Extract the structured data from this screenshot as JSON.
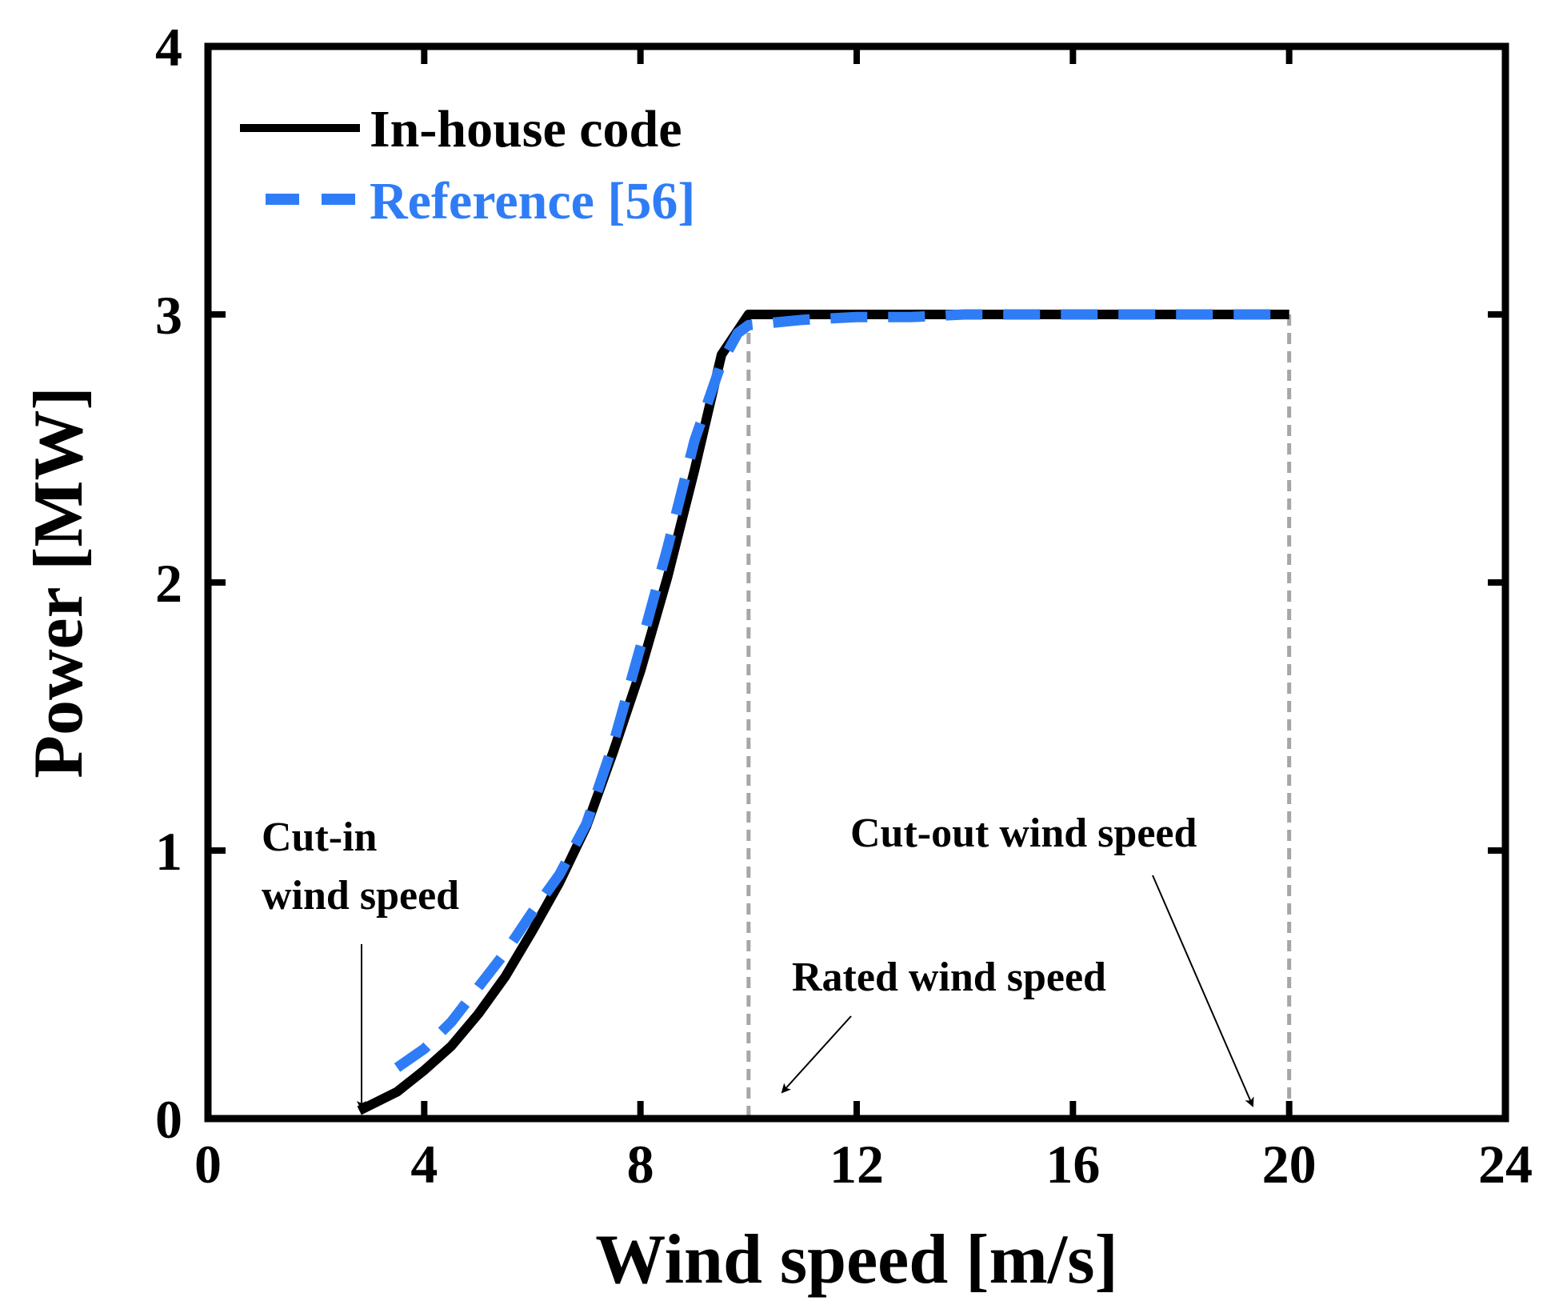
{
  "chart_data": {
    "type": "line",
    "title": "",
    "xlabel": "Wind speed [m/s]",
    "ylabel": "Power [MW]",
    "xlim": [
      0,
      24
    ],
    "ylim": [
      0,
      4
    ],
    "xticks": [
      0,
      4,
      8,
      12,
      16,
      20,
      24
    ],
    "yticks": [
      0,
      1,
      2,
      3,
      4
    ],
    "xtick_labels": [
      "0",
      "4",
      "8",
      "12",
      "16",
      "20",
      "24"
    ],
    "ytick_labels": [
      "0",
      "1",
      "2",
      "3",
      "4"
    ],
    "grid": false,
    "legend_position": "top-left",
    "series": [
      {
        "name": "In-house code",
        "color": "#000000",
        "style": "solid",
        "x": [
          2.8,
          3.0,
          3.5,
          4.0,
          4.5,
          5.0,
          5.5,
          6.0,
          6.5,
          7.0,
          7.5,
          8.0,
          8.5,
          9.0,
          9.5,
          10.0,
          11,
          12,
          13,
          14,
          15,
          16,
          17,
          18,
          19,
          20
        ],
        "y": [
          0.03,
          0.05,
          0.1,
          0.18,
          0.27,
          0.39,
          0.53,
          0.7,
          0.88,
          1.09,
          1.37,
          1.67,
          2.02,
          2.42,
          2.85,
          3.0,
          3.0,
          3.0,
          3.0,
          3.0,
          3.0,
          3.0,
          3.0,
          3.0,
          3.0,
          3.0
        ]
      },
      {
        "name": "Reference [56]",
        "color": "#2f7df6",
        "style": "dashed",
        "x": [
          3.5,
          4.0,
          4.5,
          5.0,
          5.5,
          6.0,
          6.5,
          7.0,
          7.5,
          8.0,
          8.5,
          9.0,
          9.5,
          9.8,
          10.0,
          10.5,
          11,
          12,
          13,
          14,
          15,
          16,
          17,
          18,
          19,
          20
        ],
        "y": [
          0.19,
          0.26,
          0.36,
          0.49,
          0.62,
          0.77,
          0.91,
          1.1,
          1.4,
          1.76,
          2.13,
          2.53,
          2.82,
          2.93,
          2.96,
          2.97,
          2.98,
          2.99,
          2.99,
          3.0,
          3.0,
          3.0,
          3.0,
          3.0,
          3.0,
          3.0
        ]
      }
    ],
    "reference_lines": [
      {
        "x": 10,
        "color": "#a6a6a6",
        "style": "dashed"
      },
      {
        "x": 20,
        "color": "#a6a6a6",
        "style": "dashed"
      }
    ],
    "annotations": [
      {
        "lines": [
          "Cut-in",
          "wind speed"
        ],
        "points_to": [
          2.8,
          0.0
        ]
      },
      {
        "lines": [
          "Rated wind speed"
        ],
        "points_to": [
          10.4,
          0.13
        ]
      },
      {
        "lines": [
          "Cut-out wind speed"
        ],
        "points_to": [
          19.6,
          0.03
        ]
      }
    ]
  }
}
